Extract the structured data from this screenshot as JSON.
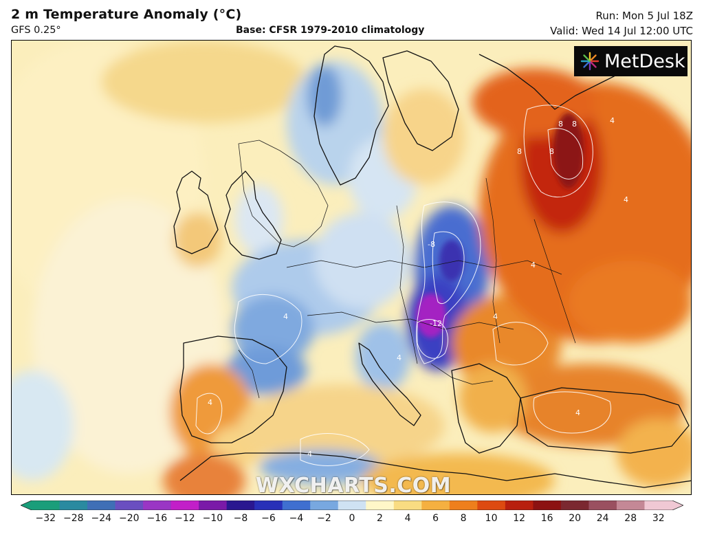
{
  "header": {
    "title": "2 m Temperature Anomaly (°C)",
    "model": "GFS 0.25°",
    "base": "Base: CFSR 1979-2010 climatology",
    "run": "Run: Mon 5 Jul 18Z",
    "valid": "Valid: Wed 14 Jul 12:00 UTC"
  },
  "logo": {
    "text": "MetDesk",
    "icon": "metdesk-starburst-icon"
  },
  "watermark": "WXCHARTS.COM",
  "colorbar": {
    "labels": [
      "−32",
      "−28",
      "−24",
      "−20",
      "−16",
      "−12",
      "−10",
      "−8",
      "−6",
      "−4",
      "−2",
      "0",
      "2",
      "4",
      "6",
      "8",
      "10",
      "12",
      "16",
      "20",
      "24",
      "28",
      "32"
    ],
    "colors": [
      "#1a9e7a",
      "#2a8aa0",
      "#3f6fb6",
      "#6a4fc0",
      "#9a36c4",
      "#c21fc8",
      "#7a19a8",
      "#2a1790",
      "#2830b8",
      "#3f6fd0",
      "#78a8e0",
      "#cfe2f3",
      "#fff7c8",
      "#f9dc82",
      "#f5b040",
      "#ee7f1c",
      "#dd4a10",
      "#b81f0e",
      "#8c1212",
      "#7b2830",
      "#9a5060",
      "#c48896",
      "#f0c8d4"
    ]
  },
  "map": {
    "contour_labels": [
      "-8",
      "-12",
      "8",
      "8",
      "8",
      "4",
      "4",
      "4",
      "4",
      "4",
      "8",
      "4",
      "4",
      "4",
      "4"
    ]
  }
}
